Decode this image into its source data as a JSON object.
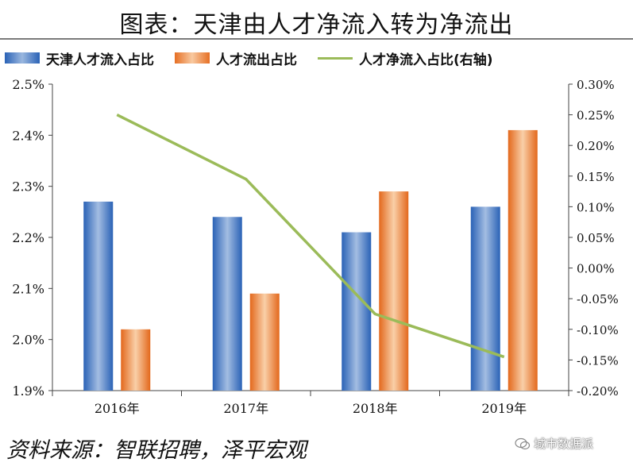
{
  "header": {
    "title": "图表：天津由人才净流入转为净流出"
  },
  "footer": {
    "source": "资料来源：智联招聘，泽平宏观",
    "watermark": "城市数据派"
  },
  "colors": {
    "inflow": "#2f6cc0",
    "outflow": "#ec7a33",
    "net": "#9bbb59"
  },
  "chart_data": {
    "type": "bar",
    "title": "图表：天津由人才净流入转为净流出",
    "categories": [
      "2016年",
      "2017年",
      "2018年",
      "2019年"
    ],
    "series": [
      {
        "name": "天津人才流入占比",
        "kind": "bar",
        "axis": "left",
        "values": [
          2.27,
          2.24,
          2.21,
          2.26
        ]
      },
      {
        "name": "人才流出占比",
        "kind": "bar",
        "axis": "left",
        "values": [
          2.02,
          2.09,
          2.29,
          2.41
        ]
      },
      {
        "name": "人才净流入占比(右轴)",
        "kind": "line",
        "axis": "right",
        "values": [
          0.25,
          0.145,
          -0.075,
          -0.145
        ]
      }
    ],
    "y_left": {
      "range": [
        1.9,
        2.5
      ],
      "ticks": [
        "1.9%",
        "2.0%",
        "2.1%",
        "2.2%",
        "2.3%",
        "2.4%",
        "2.5%"
      ]
    },
    "y_right": {
      "range": [
        -0.2,
        0.3
      ],
      "ticks": [
        "-0.20%",
        "-0.15%",
        "-0.10%",
        "-0.05%",
        "0.00%",
        "0.05%",
        "0.10%",
        "0.15%",
        "0.20%",
        "0.25%",
        "0.30%"
      ]
    },
    "grid": false,
    "legend": "top"
  }
}
